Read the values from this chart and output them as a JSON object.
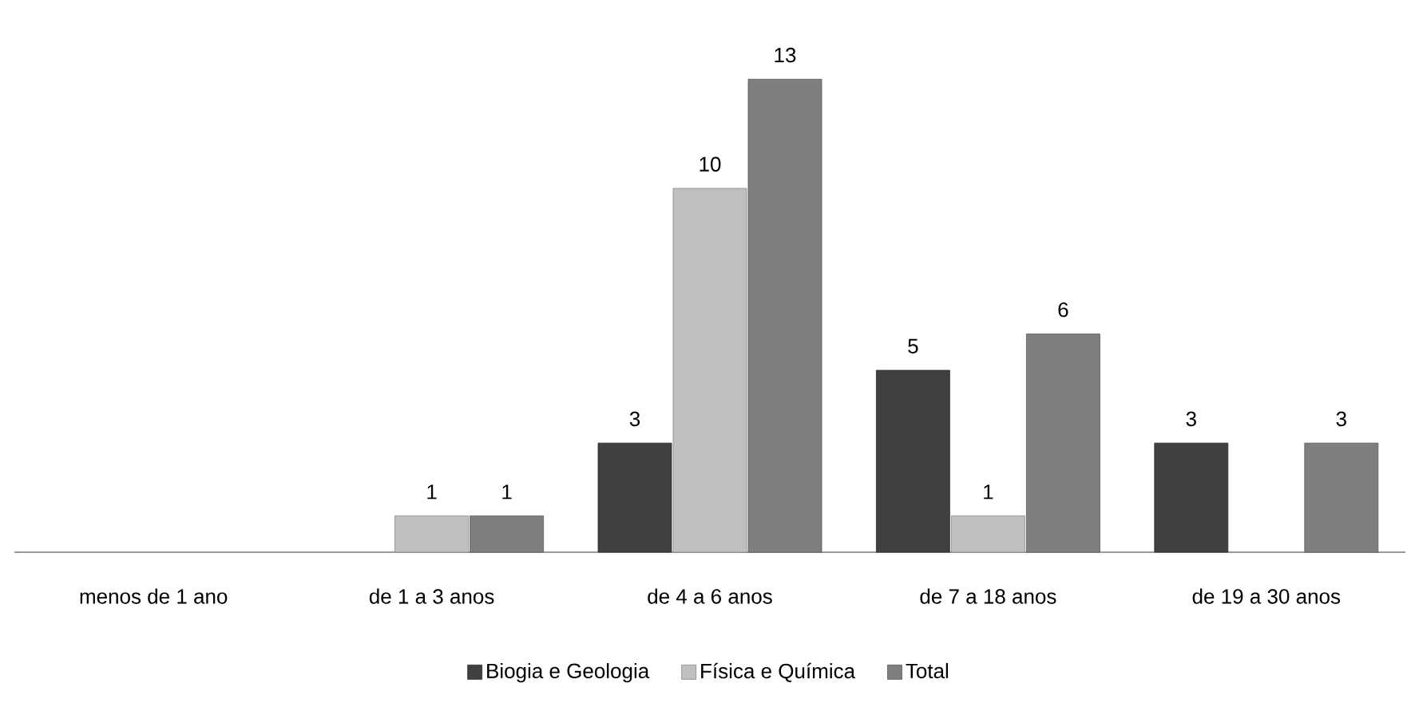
{
  "chart_data": {
    "type": "bar",
    "categories": [
      "menos de 1 ano",
      "de 1 a 3 anos",
      "de 4 a 6 anos",
      "de 7 a 18 anos",
      "de 19 a 30 anos"
    ],
    "series": [
      {
        "name": "Biogia e Geologia",
        "color": "#404040",
        "values": [
          null,
          null,
          3,
          5,
          3
        ]
      },
      {
        "name": "Física e Química",
        "color": "#c0c0c0",
        "values": [
          null,
          1,
          10,
          1,
          null
        ]
      },
      {
        "name": "Total",
        "color": "#7f7f7f",
        "values": [
          null,
          1,
          13,
          6,
          3
        ]
      }
    ],
    "data_labels": true,
    "legend": "bottom"
  }
}
